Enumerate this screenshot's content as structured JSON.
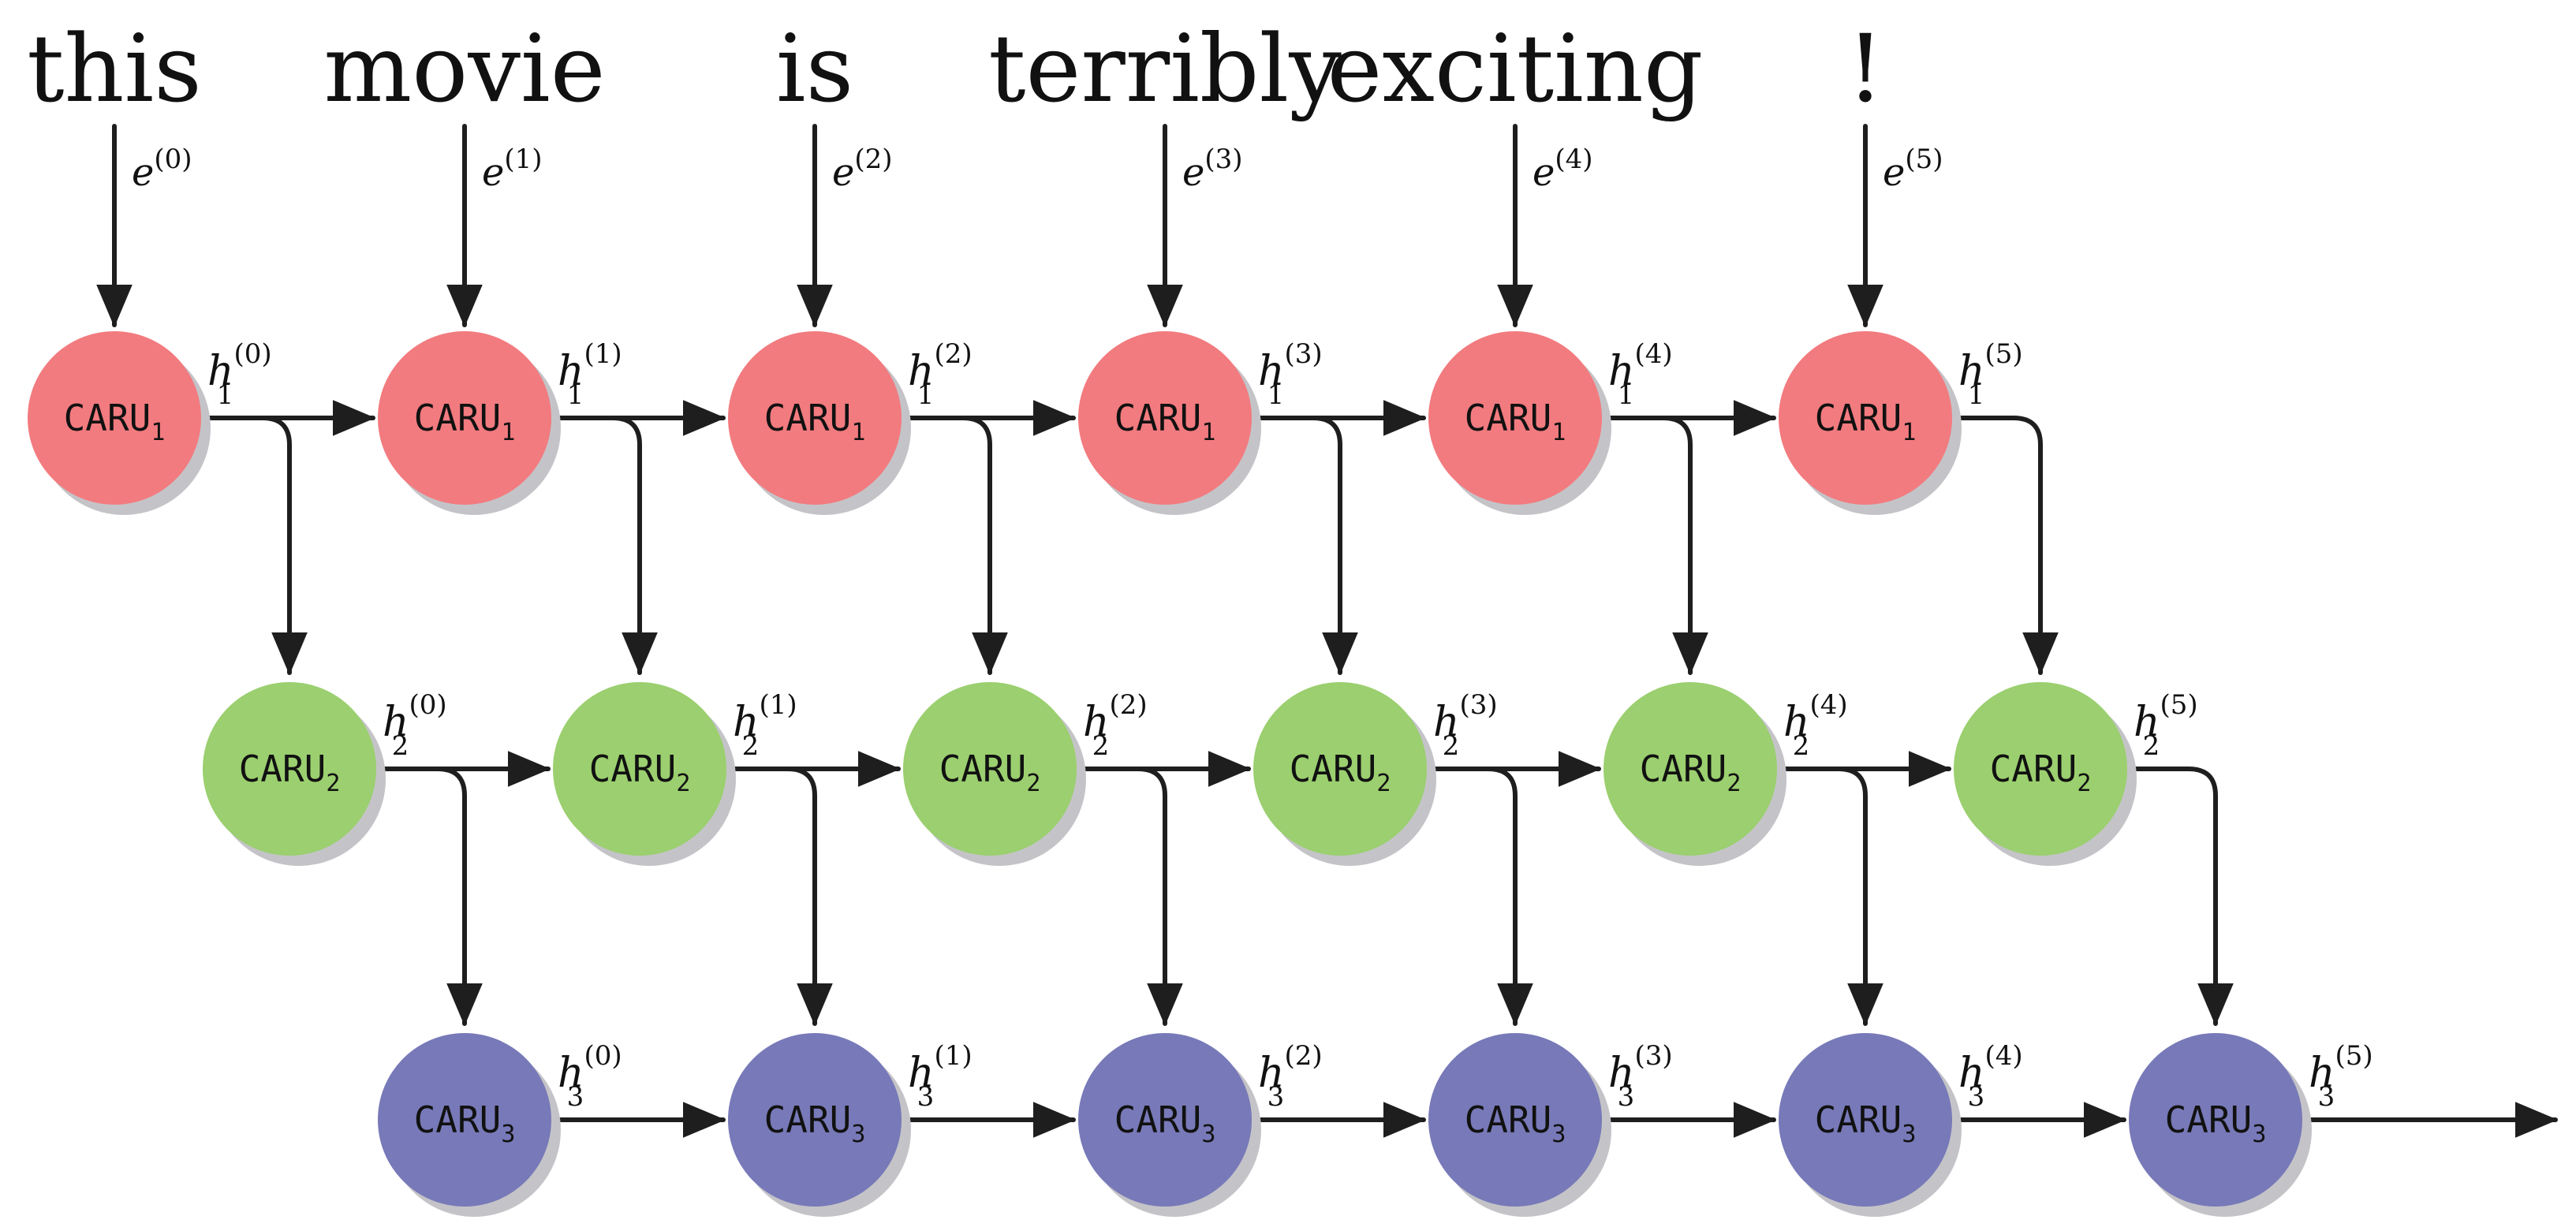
{
  "words": [
    "this",
    "movie",
    "is",
    "terribly",
    "exciting",
    "!"
  ],
  "embedding_symbol": "e",
  "time_indices": [
    "(0)",
    "(1)",
    "(2)",
    "(3)",
    "(4)",
    "(5)"
  ],
  "hidden_symbol": "h",
  "cell_name": "CARU",
  "layers": [
    {
      "index": "1",
      "color": "#f27b7f"
    },
    {
      "index": "2",
      "color": "#9bcf6f"
    },
    {
      "index": "3",
      "color": "#7779b8"
    }
  ],
  "shadow_color": "#c4c4c8"
}
